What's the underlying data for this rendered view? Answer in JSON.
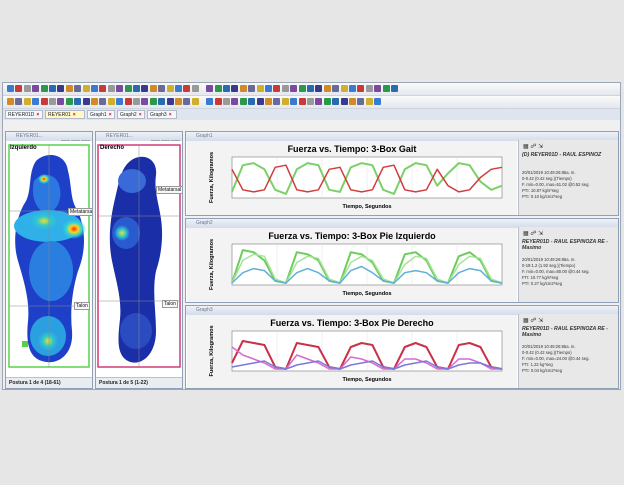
{
  "tabs": [
    {
      "label": "REYER01D",
      "active": false
    },
    {
      "label": "REYER01",
      "active": true
    },
    {
      "label": "Graph1",
      "active": false
    },
    {
      "label": "Graph2",
      "active": false
    },
    {
      "label": "Graph3",
      "active": false
    }
  ],
  "left_panel": {
    "title": "REYER01...",
    "foot_label": "Izquierdo",
    "labels": {
      "metatarsal": "Metatarsal",
      "talon": "Talon"
    },
    "status": "Postura 1 de 4 (18-61)"
  },
  "right_panel": {
    "title": "REYER01...",
    "foot_label": "Derecho",
    "labels": {
      "metatarsal": "Metatarsal",
      "talon": "Talon"
    },
    "status": "Postura 1 de 5 (1-22)"
  },
  "graphs": [
    {
      "window_title": "Graph1",
      "side_title": "(D) REYER01D - RAUL ESPINOZ",
      "info": [
        "20/01/2019 10:49:26:85a. m.",
        "0-0.42 (0.42 seg.)(Tiempo)",
        "F. min=0.00, max=51.02 @0.52 seg.",
        "PTI: 10.87 kg/s*seg",
        "PTI: 0.10 kg/cm2*seg"
      ],
      "chart_data": {
        "type": "line",
        "title": "Fuerza vs. Tiempo: 3-Box Gait",
        "xlabel": "Tiempo, Segundos",
        "ylabel": "Fuerza, Kilogramos",
        "series": [
          {
            "color": "#7ccf6a",
            "values": [
              0.15,
              0.8,
              0.85,
              0.7,
              0.2,
              0.1,
              0.7,
              0.85,
              0.8,
              0.2,
              0.15,
              0.75,
              0.85,
              0.8,
              0.2,
              0.1,
              0.7,
              0.85,
              0.8,
              0.3,
              0.6,
              0.85,
              0.8,
              0.4,
              0.2,
              0.3
            ]
          },
          {
            "color": "#d23c3c",
            "values": [
              0.7,
              0.2,
              0.15,
              0.2,
              0.75,
              0.8,
              0.2,
              0.15,
              0.2,
              0.7,
              0.75,
              0.2,
              0.15,
              0.2,
              0.75,
              0.8,
              0.2,
              0.15,
              0.2,
              0.7,
              0.3,
              0.15,
              0.2,
              0.5,
              0.7,
              0.75
            ]
          }
        ]
      }
    },
    {
      "window_title": "Graph2",
      "side_title": "REYER01D - RAUL ESPINOZA RE - Masimo",
      "info": [
        "20/01/2019 10:49:26:85a. m.",
        "0-19:1.2 (1.92 seg.)(Tiempo)",
        "F. min=0.00, max=80.00 @0.44 seg.",
        "FTI: 10.77 kg/s*seg",
        "PTI: 0.27 kg/cm2*seg"
      ],
      "chart_data": {
        "type": "line",
        "title": "Fuerza vs. Tiempo: 3-Box Pie Izquierdo",
        "xlabel": "Tiempo, Segundos",
        "ylabel": "Fuerza, Kilogramos",
        "series": [
          {
            "color": "#6ccd5c",
            "values": [
              0.05,
              0.85,
              0.8,
              0.6,
              0.1,
              0.05,
              0.8,
              0.75,
              0.6,
              0.1,
              0.05,
              0.8,
              0.75,
              0.55,
              0.1,
              0.05,
              0.75,
              0.8,
              0.6,
              0.1,
              0.05,
              0.7,
              0.8,
              0.6,
              0.1,
              0.05
            ]
          },
          {
            "color": "#a8e29a",
            "values": [
              0.05,
              0.6,
              0.75,
              0.7,
              0.15,
              0.05,
              0.55,
              0.7,
              0.65,
              0.15,
              0.05,
              0.55,
              0.7,
              0.6,
              0.15,
              0.05,
              0.5,
              0.7,
              0.65,
              0.15,
              0.05,
              0.5,
              0.7,
              0.65,
              0.15,
              0.05
            ]
          },
          {
            "color": "#5fb0d8",
            "values": [
              0.05,
              0.3,
              0.4,
              0.35,
              0.1,
              0.05,
              0.3,
              0.4,
              0.3,
              0.1,
              0.05,
              0.35,
              0.45,
              0.3,
              0.1,
              0.05,
              0.3,
              0.35,
              0.3,
              0.1,
              0.05,
              0.3,
              0.4,
              0.35,
              0.1,
              0.05
            ]
          }
        ]
      }
    },
    {
      "window_title": "Graph3",
      "side_title": "REYER01D - RAUL ESPINOZA RE - Masimo",
      "info": [
        "20/01/2019 10:49:26:85a. m.",
        "0-0.42 (0.42 seg.)(Tiempo)",
        "F. min=0.00, max=24.00 @0.44 seg.",
        "FTI: 1.22 kg*seg",
        "PTI: 0.04 kg/cm2*seg"
      ],
      "chart_data": {
        "type": "line",
        "title": "Fuerza vs. Tiempo: 3-Box Pie Derecho",
        "xlabel": "Tiempo, Segundos",
        "ylabel": "Fuerza, Kilogramos",
        "series": [
          {
            "color": "#c8324a",
            "values": [
              0.2,
              0.75,
              0.7,
              0.65,
              0.1,
              0.05,
              0.7,
              0.65,
              0.6,
              0.1,
              0.05,
              0.6,
              0.7,
              0.65,
              0.1,
              0.05,
              0.6,
              0.7,
              0.6,
              0.1,
              0.05,
              0.65,
              0.7,
              0.6,
              0.1,
              0.05
            ]
          },
          {
            "color": "#d76ad0",
            "values": [
              0.6,
              0.4,
              0.3,
              0.2,
              0.05,
              0.05,
              0.4,
              0.3,
              0.2,
              0.05,
              0.05,
              0.35,
              0.3,
              0.2,
              0.05,
              0.05,
              0.3,
              0.3,
              0.2,
              0.05,
              0.05,
              0.3,
              0.3,
              0.2,
              0.05,
              0.05
            ]
          },
          {
            "color": "#7a7ad8",
            "values": [
              0.1,
              0.15,
              0.2,
              0.25,
              0.1,
              0.05,
              0.15,
              0.2,
              0.25,
              0.1,
              0.05,
              0.15,
              0.2,
              0.25,
              0.1,
              0.05,
              0.15,
              0.2,
              0.25,
              0.1,
              0.05,
              0.15,
              0.2,
              0.2,
              0.1,
              0.05
            ]
          }
        ]
      }
    }
  ]
}
